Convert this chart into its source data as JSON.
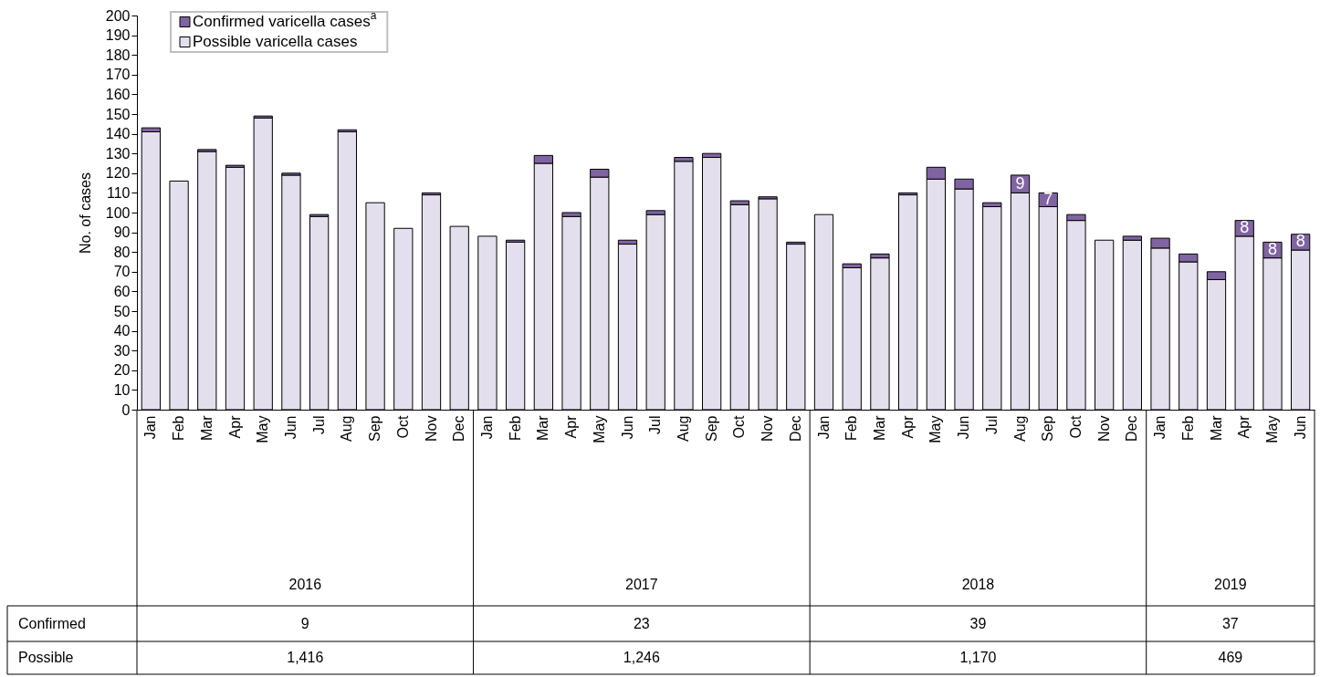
{
  "chart_data": {
    "type": "bar",
    "stacked": true,
    "ylabel": "No. of cases",
    "categories": [
      "Jan",
      "Feb",
      "Mar",
      "Apr",
      "May",
      "Jun",
      "Jul",
      "Aug",
      "Sep",
      "Oct",
      "Nov",
      "Dec",
      "Jan",
      "Feb",
      "Mar",
      "Apr",
      "May",
      "Jun",
      "Jul",
      "Aug",
      "Sep",
      "Oct",
      "Nov",
      "Dec",
      "Jan",
      "Feb",
      "Mar",
      "Apr",
      "May",
      "Jun",
      "Jul",
      "Aug",
      "Sep",
      "Oct",
      "Nov",
      "Dec",
      "Jan",
      "Feb",
      "Mar",
      "Apr",
      "May",
      "Jun"
    ],
    "series": [
      {
        "name": "Possible varicella cases",
        "color": "#e4dfec",
        "values": [
          141,
          116,
          131,
          123,
          148,
          119,
          98,
          141,
          105,
          92,
          109,
          93,
          88,
          85,
          125,
          98,
          118,
          84,
          99,
          126,
          128,
          104,
          107,
          84,
          99,
          72,
          77,
          109,
          117,
          112,
          103,
          110,
          103,
          96,
          86,
          86,
          82,
          75,
          66,
          88,
          77,
          81
        ]
      },
      {
        "name": "Confirmed varicella cases$^{a}$",
        "color": "#8064a2",
        "values": [
          2,
          0,
          1,
          1,
          1,
          1,
          1,
          1,
          0,
          0,
          1,
          0,
          0,
          1,
          4,
          2,
          4,
          2,
          2,
          2,
          2,
          2,
          1,
          1,
          0,
          2,
          2,
          1,
          6,
          5,
          2,
          9,
          7,
          3,
          0,
          2,
          5,
          4,
          4,
          8,
          8,
          8
        ],
        "value_labels": [
          null,
          null,
          null,
          null,
          null,
          null,
          null,
          null,
          null,
          null,
          null,
          null,
          null,
          null,
          null,
          null,
          null,
          null,
          null,
          null,
          null,
          null,
          null,
          null,
          null,
          null,
          null,
          null,
          null,
          null,
          null,
          "9",
          "7",
          null,
          null,
          null,
          null,
          null,
          null,
          "8",
          "8",
          "8"
        ]
      }
    ],
    "ylim": [
      0,
      200
    ],
    "yticks": [
      0,
      10,
      20,
      30,
      40,
      50,
      60,
      70,
      80,
      90,
      100,
      110,
      120,
      130,
      140,
      150,
      160,
      170,
      180,
      190,
      200
    ],
    "grid": false,
    "legend": "top left",
    "annotations": [
      "2016",
      "2017",
      "2018",
      "2019",
      "Confirmed",
      "9",
      "23",
      "39",
      "37",
      "Possible",
      "1,416",
      "1,246",
      "1,170",
      "469"
    ]
  }
}
